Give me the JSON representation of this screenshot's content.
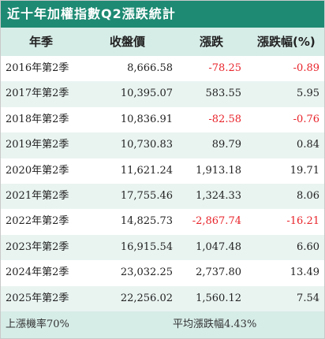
{
  "title": "近十年加權指數Q2漲跌統計",
  "headers": [
    "年季",
    "收盤價",
    "漲跌",
    "漲跌幅(%)"
  ],
  "rows": [
    {
      "period": "2016年第2季",
      "close": "8,666.58",
      "change": "-78.25",
      "pct": "-0.89",
      "negative": true
    },
    {
      "period": "2017年第2季",
      "close": "10,395.07",
      "change": "583.55",
      "pct": "5.95",
      "negative": false
    },
    {
      "period": "2018年第2季",
      "close": "10,836.91",
      "change": "-82.58",
      "pct": "-0.76",
      "negative": true
    },
    {
      "period": "2019年第2季",
      "close": "10,730.83",
      "change": "89.79",
      "pct": "0.84",
      "negative": false
    },
    {
      "period": "2020年第2季",
      "close": "11,621.24",
      "change": "1,913.18",
      "pct": "19.71",
      "negative": false
    },
    {
      "period": "2021年第2季",
      "close": "17,755.46",
      "change": "1,324.33",
      "pct": "8.06",
      "negative": false
    },
    {
      "period": "2022年第2季",
      "close": "14,825.73",
      "change": "-2,867.74",
      "pct": "-16.21",
      "negative": true
    },
    {
      "period": "2023年第2季",
      "close": "16,915.54",
      "change": "1,047.48",
      "pct": "6.60",
      "negative": false
    },
    {
      "period": "2024年第2季",
      "close": "23,032.25",
      "change": "2,737.80",
      "pct": "13.49",
      "negative": false
    },
    {
      "period": "2025年第2季",
      "close": "22,256.02",
      "change": "1,560.12",
      "pct": "7.54",
      "negative": false
    }
  ],
  "footer": {
    "up_rate": "上漲機率70%",
    "avg_change": "平均漲跌幅4.43%"
  },
  "colors": {
    "title_bg": "#1e8a73",
    "header_bg": "#d6ece7",
    "stripe_bg": "#e9f4f1",
    "negative": "#e8232a"
  }
}
